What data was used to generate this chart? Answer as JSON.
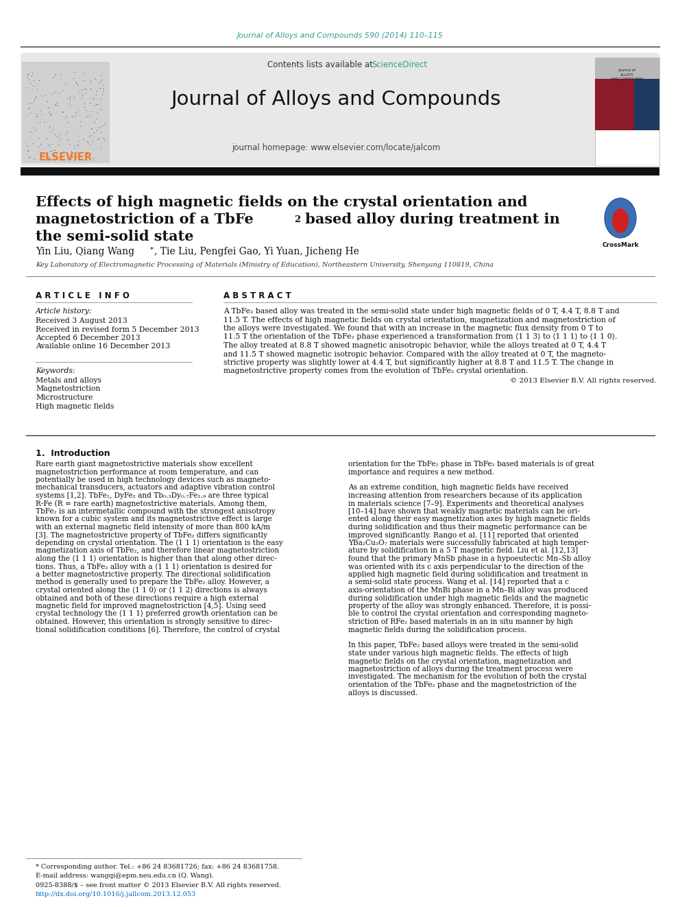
{
  "journal_ref": "Journal of Alloys and Compounds 590 (2014) 110–115",
  "journal_ref_color": "#2a9d8f",
  "journal_name": "Journal of Alloys and Compounds",
  "journal_homepage": "journal homepage: www.elsevier.com/locate/jalcom",
  "header_bg": "#e8e8e8",
  "title_line1": "Effects of high magnetic fields on the crystal orientation and",
  "title_line2": "magnetostriction of a TbFe",
  "title_line2_sub": "2",
  "title_line2_rest": " based alloy during treatment in",
  "title_line3": "the semi-solid state",
  "authors": "Yin Liu, Qiang Wang ",
  "authors_rest": ", Tie Liu, Pengfei Gao, Yi Yuan, Jicheng He",
  "affiliation": "Key Laboratory of Electromagnetic Processing of Materials (Ministry of Education), Northeastern University, Shenyang 110819, China",
  "article_info_header": "ARTICLE  INFO",
  "article_history_label": "Article history:",
  "article_history": [
    "Received 3 August 2013",
    "Received in revised form 5 December 2013",
    "Accepted 6 December 2013",
    "Available online 16 December 2013"
  ],
  "keywords_label": "Keywords:",
  "keywords": [
    "Metals and alloys",
    "Magnetostriction",
    "Microstructure",
    "High magnetic fields"
  ],
  "abstract_header": "ABSTRACT",
  "abstract_text": "A TbFe₂ based alloy was treated in the semi-solid state under high magnetic fields of 0 T, 4.4 T, 8.8 T and\n11.5 T. The effects of high magnetic fields on crystal orientation, magnetization and magnetostriction of\nthe alloys were investigated. We found that with an increase in the magnetic flux density from 0 T to\n11.5 T the orientation of the TbFe₂ phase experienced a transformation from ⟨1 1 3⟩ to ⟨1 1 1⟩ to ⟨1 1 0⟩.\nThe alloy treated at 8.8 T showed magnetic anisotropic behavior, while the alloys treated at 0 T, 4.4 T\nand 11.5 T showed magnetic isotropic behavior. Compared with the alloy treated at 0 T, the magneto-\nstrictive property was slightly lower at 4.4 T, but significantly higher at 8.8 T and 11.5 T. The change in\nmagnetostrictive property comes from the evolution of TbFe₂ crystal orientation.",
  "copyright": "© 2013 Elsevier B.V. All rights reserved.",
  "intro_header": "1.  Introduction",
  "intro_col1": "Rare earth giant magnetostrictive materials show excellent\nmagnetostriction performance at room temperature, and can\npotentially be used in high technology devices such as magneto-\nmechanical transducers, actuators and adaptive vibration control\nsystems [1,2]. TbFe₂, DyFe₂ and Tb₀.₃Dy₀.₇Fe₁.₉ are three typical\nR-Fe (R = rare earth) magnetostrictive materials. Among them,\nTbFe₂ is an intermetallic compound with the strongest anisotropy\nknown for a cubic system and its magnetostrictive effect is large\nwith an external magnetic field intensity of more than 800 kA/m\n[3]. The magnetostrictive property of TbFe₂ differs significantly\ndepending on crystal orientation. The ⟨1 1 1⟩ orientation is the easy\nmagnetization axis of TbFe₂, and therefore linear magnetostriction\nalong the ⟨1 1 1⟩ orientation is higher than that along other direc-\ntions. Thus, a TbFe₂ alloy with a ⟨1 1 1⟩ orientation is desired for\na better magnetostrictive property. The directional solidification\nmethod is generally used to prepare the TbFe₂ alloy. However, a\ncrystal oriented along the ⟨1 1 0⟩ or ⟨1 1 2⟩ directions is always\nobtained and both of these directions require a high external\nmagnetic field for improved magnetostriction [4,5]. Using seed\ncrystal technology the ⟨1 1 1⟩ preferred growth orientation can be\nobtained. However, this orientation is strongly sensitive to direc-\ntional solidification conditions [6]. Therefore, the control of crystal",
  "intro_col2": "orientation for the TbFe₂ phase in TbFe₂ based materials is of great\nimportance and requires a new method.\n\nAs an extreme condition, high magnetic fields have received\nincreasing attention from researchers because of its application\nin materials science [7–9]. Experiments and theoretical analyses\n[10–14] have shown that weakly magnetic materials can be ori-\nented along their easy magnetization axes by high magnetic fields\nduring solidification and thus their magnetic performance can be\nimproved significantly. Rango et al. [11] reported that oriented\nYBa₂Cu₃O₇ materials were successfully fabricated at high temper-\nature by solidification in a 5 T magnetic field. Liu et al. [12,13]\nfound that the primary MnSb phase in a hypoeutectic Mn–Sb alloy\nwas oriented with its c axis perpendicular to the direction of the\napplied high magnetic field during solidification and treatment in\na semi-solid state process. Wang et al. [14] reported that a c\naxis-orientation of the MnBi phase in a Mn–Bi alloy was produced\nduring solidification under high magnetic fields and the magnetic\nproperty of the alloy was strongly enhanced. Therefore, it is possi-\nble to control the crystal orientation and corresponding magneto-\nstriction of RFe₂ based materials in an in situ manner by high\nmagnetic fields during the solidification process.\n\nIn this paper, TbFe₂ based alloys were treated in the semi-solid\nstate under various high magnetic fields. The effects of high\nmagnetic fields on the crystal orientation, magnetization and\nmagnetostriction of alloys during the treatment process were\ninvestigated. The mechanism for the evolution of both the crystal\norientation of the TbFe₂ phase and the magnetostriction of the\nalloys is discussed.",
  "footnote1": "* Corresponding author. Tel.: +86 24 83681726; fax: +86 24 83681758.",
  "footnote2": "E-mail address: wangqi@epm.neu.edu.cn (Q. Wang).",
  "footnote3": "0925-8388/$ – see front matter © 2013 Elsevier B.V. All rights reserved.",
  "footnote4": "http://dx.doi.org/10.1016/j.jallcom.2013.12.053",
  "bg_color": "#ffffff",
  "text_color": "#000000",
  "separator_color": "#000000",
  "header_text_color": "#000000",
  "elsevier_orange": "#f47920",
  "sciencedirect_color": "#2a9d8f"
}
